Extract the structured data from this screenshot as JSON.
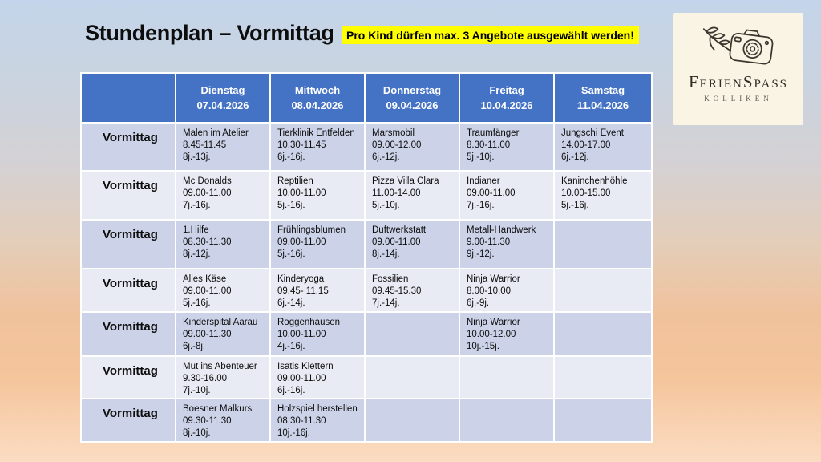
{
  "title": "Stundenplan – Vormittag",
  "note": "Pro Kind dürfen max. 3 Angebote ausgewählt werden!",
  "logo": {
    "name": "FerienSpass",
    "place": "Kölliken"
  },
  "colors": {
    "header_bg": "#4472C4",
    "band_dark": "#CCD3E8",
    "band_light": "#E9EBF4",
    "note_bg": "#FFFF00",
    "logo_bg": "#FAF4E5",
    "bg_top": "#C3D5EA",
    "bg_bottom": "#FBDCC2"
  },
  "table": {
    "row_label": "Vormittag",
    "columns": [
      {
        "day": "Dienstag",
        "date": "07.04.2026"
      },
      {
        "day": "Mittwoch",
        "date": "08.04.2026"
      },
      {
        "day": "Donnerstag",
        "date": "09.04.2026"
      },
      {
        "day": "Freitag",
        "date": "10.04.2026"
      },
      {
        "day": "Samstag",
        "date": "11.04.2026"
      }
    ],
    "rows": [
      {
        "cells": [
          {
            "name": "Malen im Atelier",
            "time": "8.45-11.45",
            "age": "8j.-13j."
          },
          {
            "name": "Tierklinik Entfelden",
            "time": "10.30-11.45",
            "age": "6j.-16j."
          },
          {
            "name": "Marsmobil",
            "time": "09.00-12.00",
            "age": "6j.-12j."
          },
          {
            "name": "Traumfänger",
            "time": "8.30-11.00",
            "age": "5j.-10j."
          },
          {
            "name": "Jungschi Event",
            "time": "14.00-17.00",
            "age": "6j.-12j."
          }
        ]
      },
      {
        "cells": [
          {
            "name": "Mc Donalds",
            "time": "09.00-11.00",
            "age": "7j.-16j."
          },
          {
            "name": "Reptilien",
            "time": "10.00-11.00",
            "age": "5j.-16j."
          },
          {
            "name": "Pizza Villa Clara",
            "time": "11.00-14.00",
            "age": "5j.-10j."
          },
          {
            "name": "Indianer",
            "time": "09.00-11.00",
            "age": "7j.-16j."
          },
          {
            "name": "Kaninchenhöhle",
            "time": "10.00-15.00",
            "age": "5j.-16j."
          }
        ]
      },
      {
        "cells": [
          {
            "name": "1.Hilfe",
            "time": "08.30-11.30",
            "age": "8j.-12j."
          },
          {
            "name": "Frühlingsblumen",
            "time": "09.00-11.00",
            "age": "5j.-16j."
          },
          {
            "name": "Duftwerkstatt",
            "time": "09.00-11.00",
            "age": "8j.-14j."
          },
          {
            "name": "Metall-Handwerk",
            "time": "9.00-11.30",
            "age": "9j.-12j."
          },
          null
        ]
      },
      {
        "cells": [
          {
            "name": "Alles Käse",
            "time": "09.00-11.00",
            "age": "5j.-16j."
          },
          {
            "name": "Kinderyoga",
            "time": "09.45- 11.15",
            "age": "6j.-14j."
          },
          {
            "name": "Fossilien",
            "time": "09.45-15.30",
            "age": "7j.-14j."
          },
          {
            "name": "Ninja Warrior",
            "time": "8.00-10.00",
            "age": "6j.-9j."
          },
          null
        ]
      },
      {
        "cells": [
          {
            "name": "Kinderspital Aarau",
            "time": "09.00-11.30",
            "age": "6j.-8j."
          },
          {
            "name": "Roggenhausen",
            "time": "10.00-11.00",
            "age": "4j.-16j."
          },
          null,
          {
            "name": "Ninja Warrior",
            "time": "10.00-12.00",
            "age": "10j.-15j."
          },
          null
        ]
      },
      {
        "cells": [
          {
            "name": "Mut ins Abenteuer",
            "time": "9.30-16.00",
            "age": "7j.-10j."
          },
          {
            "name": "Isatis Klettern",
            "time": "09.00-11.00",
            "age": "6j.-16j."
          },
          null,
          null,
          null
        ]
      },
      {
        "cells": [
          {
            "name": "Boesner Malkurs",
            "time": "09.30-11.30",
            "age": "8j.-10j."
          },
          {
            "name": "Holzspiel herstellen",
            "time": "08.30-11.30",
            "age": "10j.-16j."
          },
          null,
          null,
          null
        ]
      }
    ]
  }
}
